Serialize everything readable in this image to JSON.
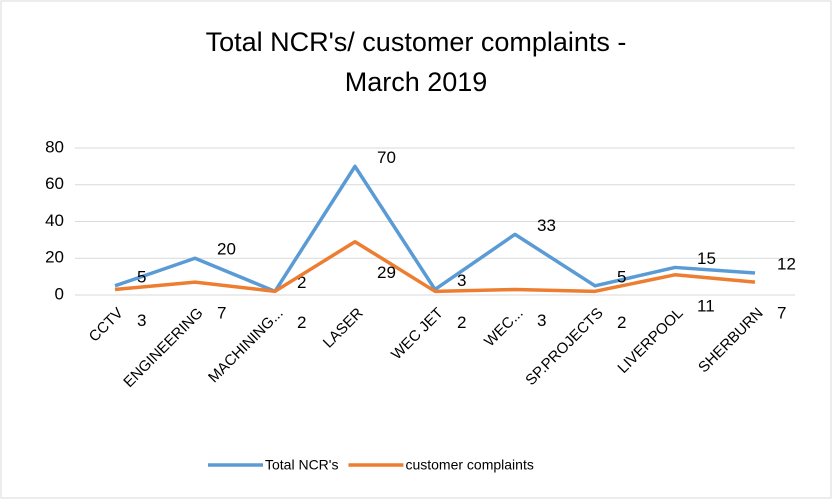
{
  "chart_data": {
    "type": "line",
    "title": "Total NCR's/ customer complaints - March 2019",
    "categories": [
      "CCTV",
      "ENGINEERING",
      "MACHINING...",
      "LASER",
      "WEC JET",
      "WEC...",
      "SP.PROJECTS",
      "LIVERPOOL",
      "SHERBURN"
    ],
    "series": [
      {
        "name": "Total NCR's",
        "color": "#5b9bd5",
        "values": [
          5,
          20,
          2,
          70,
          3,
          33,
          5,
          15,
          12
        ]
      },
      {
        "name": "customer complaints",
        "color": "#ed7d31",
        "values": [
          3,
          7,
          2,
          29,
          2,
          3,
          2,
          11,
          7
        ]
      }
    ],
    "ylim": [
      0,
      80
    ],
    "yticks": [
      0,
      20,
      40,
      60,
      80
    ],
    "grid": true,
    "legend": "bottom"
  }
}
